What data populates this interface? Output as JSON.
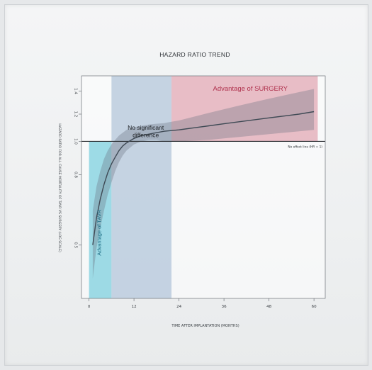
{
  "chart_data": {
    "type": "line",
    "title": "HAZARD RATIO TREND",
    "xlabel": "TIME AFTER IMPLANTATION (MONTHS)",
    "ylabel": "HAZARD RATIO FOR ALL CAUSE MORTALITY OF TAVR VS SURGERY (LOG SCALE)",
    "x_ticks": [
      0,
      12,
      24,
      36,
      48,
      60
    ],
    "y_ticks": [
      0.5,
      0.8,
      1.0,
      1.2,
      1.4
    ],
    "xlim": [
      -2,
      63
    ],
    "ylim": [
      0.35,
      1.55
    ],
    "log_y": true,
    "grid": false,
    "reference_line": {
      "y": 1.0,
      "label": "No effect line (HR = 1)"
    },
    "regions": [
      {
        "x0": 0,
        "x1": 6,
        "label": "Advantage of TAVR",
        "color": "#7fd0df"
      },
      {
        "x0": 6,
        "x1": 22,
        "label": "No significant difference",
        "color": "#a9bfd6"
      },
      {
        "x0": 22,
        "x1": 61,
        "label": "Advantage of SURGERY",
        "color": "#e2a8b4"
      }
    ],
    "series": [
      {
        "x": [
          1,
          2,
          3,
          4,
          5,
          6,
          7,
          8,
          9,
          10,
          12,
          14,
          16,
          18,
          20,
          22,
          24,
          28,
          32,
          36,
          40,
          44,
          48,
          52,
          56,
          60
        ],
        "values": [
          0.5,
          0.6,
          0.68,
          0.75,
          0.81,
          0.86,
          0.9,
          0.94,
          0.97,
          0.99,
          1.02,
          1.04,
          1.05,
          1.06,
          1.07,
          1.075,
          1.08,
          1.095,
          1.11,
          1.125,
          1.14,
          1.155,
          1.17,
          1.185,
          1.2,
          1.22
        ],
        "ci_lower": [
          0.4,
          0.49,
          0.56,
          0.63,
          0.7,
          0.76,
          0.82,
          0.87,
          0.91,
          0.94,
          0.98,
          1.0,
          1.01,
          1.01,
          1.0,
          1.0,
          1.0,
          1.005,
          1.01,
          1.02,
          1.03,
          1.04,
          1.05,
          1.06,
          1.07,
          1.08
        ],
        "ci_upper": [
          0.63,
          0.74,
          0.82,
          0.89,
          0.94,
          0.98,
          1.01,
          1.04,
          1.06,
          1.08,
          1.1,
          1.11,
          1.12,
          1.125,
          1.13,
          1.14,
          1.15,
          1.18,
          1.21,
          1.24,
          1.27,
          1.3,
          1.33,
          1.36,
          1.39,
          1.42
        ],
        "color": "#3f4a55",
        "band_color": "#6a7480"
      }
    ]
  },
  "colors": {
    "axis": "#6d7278",
    "reference_line": "#2b2f33",
    "text": "#2d3136",
    "surgery_text": "#b0334e",
    "tavr_text": "#1f6f86"
  }
}
